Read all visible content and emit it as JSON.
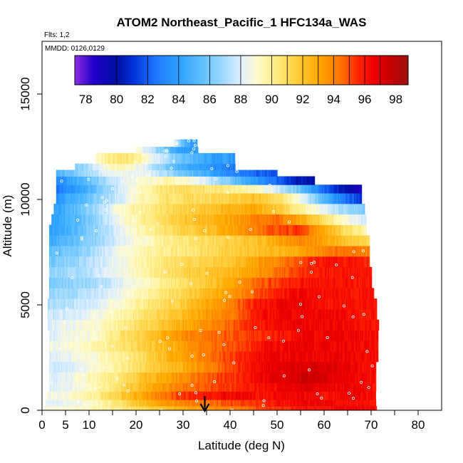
{
  "chart_data": {
    "type": "heatmap",
    "title": "ATOM2 Northeast_Pacific_1 HFC134a_WAS",
    "flights_label": "Flts: 1,2",
    "mmdd_label": "MMDD: 0126,0129",
    "xlabel": "Latitude (deg N)",
    "ylabel": "Altitude (m)",
    "xlim": [
      0,
      85
    ],
    "ylim": [
      0,
      17500
    ],
    "x_ticks": [
      0,
      5,
      10,
      20,
      30,
      40,
      50,
      60,
      70,
      80
    ],
    "x_ticks_unlabeled": [
      15,
      25,
      35,
      45,
      55,
      65,
      75
    ],
    "y_ticks": [
      0,
      5000,
      10000,
      15000
    ],
    "colorbar": {
      "min": 77.3,
      "max": 98.8,
      "ticks": [
        78,
        80,
        82,
        84,
        86,
        88,
        90,
        92,
        94,
        96,
        98
      ],
      "stops": [
        {
          "v": 77.3,
          "c": "#8a2be2"
        },
        {
          "v": 78.5,
          "c": "#2000c8"
        },
        {
          "v": 80.0,
          "c": "#0010a0"
        },
        {
          "v": 81.0,
          "c": "#0030d8"
        },
        {
          "v": 82.5,
          "c": "#1e78ff"
        },
        {
          "v": 84.0,
          "c": "#2ea0ff"
        },
        {
          "v": 85.5,
          "c": "#5ec0ff"
        },
        {
          "v": 87.0,
          "c": "#a8dcff"
        },
        {
          "v": 88.0,
          "c": "#dff0ff"
        },
        {
          "v": 89.0,
          "c": "#fffbd0"
        },
        {
          "v": 90.0,
          "c": "#fff090"
        },
        {
          "v": 91.5,
          "c": "#ffd040"
        },
        {
          "v": 93.0,
          "c": "#ffa800"
        },
        {
          "v": 94.5,
          "c": "#ff7000"
        },
        {
          "v": 95.5,
          "c": "#ff2800"
        },
        {
          "v": 96.5,
          "c": "#f00000"
        },
        {
          "v": 97.5,
          "c": "#cc0000"
        },
        {
          "v": 98.8,
          "c": "#9a1010"
        }
      ]
    },
    "marker": {
      "lat": 35,
      "label": "arrow"
    },
    "bands": [
      {
        "y0": 0,
        "y1": 200,
        "lat0": 0.5,
        "lat1": 71,
        "v": [
          89,
          89,
          89.5,
          90,
          91,
          92,
          93,
          93.5,
          94,
          95,
          95.5,
          96,
          96,
          96.5,
          96
        ]
      },
      {
        "y0": 200,
        "y1": 500,
        "lat0": 0.8,
        "lat1": 71,
        "v": [
          88,
          88.5,
          89,
          90.5,
          92,
          93.5,
          94,
          94.5,
          95,
          95.5,
          96,
          96.5,
          96.5,
          96,
          96
        ]
      },
      {
        "y0": 500,
        "y1": 900,
        "lat0": 1,
        "lat1": 71,
        "v": [
          88.5,
          89,
          90,
          91.5,
          93,
          94.5,
          95.5,
          96,
          96.5,
          96,
          96.5,
          96.5,
          96,
          96.5,
          96
        ]
      },
      {
        "y0": 900,
        "y1": 1300,
        "lat0": 1.5,
        "lat1": 71,
        "v": [
          88,
          88.5,
          89.5,
          91,
          92.5,
          93.5,
          94.5,
          95,
          95.5,
          96,
          96.5,
          97,
          96.5,
          96.5,
          96
        ]
      },
      {
        "y0": 1300,
        "y1": 1800,
        "lat0": 1.5,
        "lat1": 71,
        "v": [
          88,
          88.5,
          89.5,
          90.5,
          92,
          93,
          94,
          95,
          95.5,
          96.5,
          97,
          97.5,
          97,
          96.5,
          96
        ]
      },
      {
        "y0": 1800,
        "y1": 2300,
        "lat0": 1.5,
        "lat1": 71,
        "v": [
          87.5,
          88,
          89,
          90,
          91,
          92,
          93,
          94,
          95.5,
          96.5,
          97,
          97,
          97,
          96.5,
          96
        ]
      },
      {
        "y0": 2300,
        "y1": 2800,
        "lat0": 1.5,
        "lat1": 71.5,
        "v": [
          88,
          88.5,
          89,
          90,
          91,
          92.5,
          93.5,
          94.5,
          95.5,
          96.5,
          96.5,
          96.5,
          96.5,
          96.5,
          96
        ]
      },
      {
        "y0": 2800,
        "y1": 3300,
        "lat0": 1.5,
        "lat1": 71.5,
        "v": [
          88.5,
          89,
          89.5,
          90.5,
          91.5,
          92.5,
          93.5,
          94.5,
          95,
          96,
          96.5,
          96.5,
          96.5,
          96.5,
          96
        ]
      },
      {
        "y0": 3300,
        "y1": 3800,
        "lat0": 1.5,
        "lat1": 71.5,
        "v": [
          88,
          88.5,
          89,
          90.5,
          91.5,
          93,
          94,
          94.5,
          95,
          95.5,
          96,
          96.5,
          96.5,
          96.5,
          96
        ]
      },
      {
        "y0": 3800,
        "y1": 4300,
        "lat0": 1.2,
        "lat1": 71.5,
        "v": [
          88,
          88.5,
          89,
          90,
          91,
          92,
          93,
          94,
          95,
          96,
          96.5,
          96.5,
          96.5,
          96,
          96
        ]
      },
      {
        "y0": 4300,
        "y1": 4800,
        "lat0": 1.2,
        "lat1": 71,
        "v": [
          87.5,
          88,
          88.5,
          89.5,
          90.5,
          91.5,
          92.5,
          93.5,
          94.5,
          96,
          96.5,
          96.5,
          96.5,
          96,
          96
        ]
      },
      {
        "y0": 4800,
        "y1": 5300,
        "lat0": 1.2,
        "lat1": 71,
        "v": [
          87,
          87.5,
          88,
          89,
          90,
          91,
          92,
          93,
          94.5,
          96,
          96.5,
          96.5,
          96,
          96,
          96
        ]
      },
      {
        "y0": 5300,
        "y1": 5800,
        "lat0": 1.5,
        "lat1": 70.5,
        "v": [
          86.5,
          87,
          87.5,
          88.5,
          89.5,
          90.5,
          91.5,
          92.5,
          93.5,
          95,
          96,
          96.5,
          96,
          96,
          96
        ]
      },
      {
        "y0": 5800,
        "y1": 6300,
        "lat0": 1.5,
        "lat1": 70,
        "v": [
          86,
          86.5,
          87,
          88,
          89,
          90,
          91,
          92,
          93,
          94.5,
          95.5,
          96,
          96,
          96,
          96
        ]
      },
      {
        "y0": 6300,
        "y1": 6800,
        "lat0": 1.5,
        "lat1": 70,
        "v": [
          86.5,
          87,
          87.5,
          88.5,
          89.5,
          90.5,
          91.5,
          92,
          92.5,
          93.5,
          94.5,
          95.5,
          96,
          96,
          96
        ]
      },
      {
        "y0": 6800,
        "y1": 7300,
        "lat0": 1.5,
        "lat1": 69.5,
        "v": [
          86,
          86.5,
          87.5,
          88.5,
          89.5,
          90.5,
          91,
          91.5,
          92,
          93,
          94,
          95,
          96,
          96,
          95.5
        ]
      },
      {
        "y0": 7300,
        "y1": 7800,
        "lat0": 1.5,
        "lat1": 69.5,
        "v": [
          85.5,
          86,
          87,
          88.5,
          89.5,
          90,
          90.5,
          91,
          91.5,
          92,
          92.5,
          93,
          94,
          94.5,
          94
        ]
      },
      {
        "y0": 7800,
        "y1": 8300,
        "lat0": 1.5,
        "lat1": 69.5,
        "v": [
          84.5,
          85.5,
          86.5,
          88,
          89,
          90,
          90.5,
          91,
          91.5,
          92,
          93,
          94,
          93,
          92,
          91
        ]
      },
      {
        "y0": 8300,
        "y1": 8800,
        "lat0": 1.5,
        "lat1": 69,
        "v": [
          84,
          85,
          86.5,
          88,
          89.5,
          90.5,
          91.5,
          92,
          93,
          94,
          95,
          95.5,
          93,
          91,
          89.5
        ]
      },
      {
        "y0": 8800,
        "y1": 9300,
        "lat0": 2,
        "lat1": 69,
        "v": [
          84,
          85,
          86.5,
          88.5,
          90,
          91,
          92,
          92.5,
          93,
          94,
          94.5,
          93,
          91,
          89,
          87.5
        ]
      },
      {
        "y0": 9300,
        "y1": 9800,
        "lat0": 2.5,
        "lat1": 68.5,
        "v": [
          84,
          85.5,
          87,
          89,
          90,
          91,
          91.5,
          92,
          92.5,
          93,
          92,
          90,
          88.5,
          87,
          86
        ]
      },
      {
        "y0": 9800,
        "y1": 10300,
        "lat0": 3,
        "lat1": 68,
        "v": [
          83.5,
          85,
          86.5,
          88,
          89.5,
          90.5,
          91,
          91,
          91.5,
          92,
          91,
          89,
          86,
          83,
          81
        ]
      },
      {
        "y0": 10300,
        "y1": 10700,
        "lat0": 3,
        "lat1": 68,
        "v": [
          82.5,
          84,
          86,
          88,
          89.5,
          90.5,
          91,
          90.5,
          90,
          89.5,
          88,
          86,
          83,
          80.5,
          78.5
        ]
      },
      {
        "y0": 10700,
        "y1": 11100,
        "lat0": 3,
        "lat1": 58,
        "v": [
          83,
          84.5,
          86,
          87.5,
          88.5,
          89,
          89.5,
          89,
          88,
          86.5,
          85,
          83.5,
          82,
          80.5,
          80
        ]
      },
      {
        "y0": 11100,
        "y1": 11400,
        "lat0": 3,
        "lat1": 50,
        "v": [
          85,
          86,
          87,
          88,
          88.5,
          88.5,
          88,
          87,
          86,
          85,
          84,
          83,
          82.5,
          82,
          81.5
        ]
      },
      {
        "y0": 11400,
        "y1": 11700,
        "lat0": 7,
        "lat1": 41,
        "v": [
          86,
          87,
          88,
          89,
          89.5,
          89,
          88,
          87,
          86,
          85,
          84.5,
          84,
          83.5,
          83,
          82.5
        ]
      },
      {
        "y0": 11700,
        "y1": 12200,
        "lat0": 11.5,
        "lat1": 41,
        "v": [
          89,
          90,
          90.5,
          90.5,
          90,
          89,
          88,
          87,
          86,
          85.5,
          85,
          84.5,
          84,
          84,
          83.5
        ]
      },
      {
        "y0": 12200,
        "y1": 12500,
        "lat0": 20,
        "lat1": 33,
        "v": [
          89,
          88.5,
          88,
          87.5,
          87,
          86.5,
          86,
          85.5,
          85,
          84.5,
          84,
          84,
          84,
          84,
          84
        ]
      },
      {
        "y0": 12500,
        "y1": 12850,
        "lat0": 28,
        "lat1": 33,
        "v": [
          88,
          87.5,
          87,
          86.5,
          86,
          85.5,
          85,
          85,
          84.5,
          84.5,
          84,
          84,
          84,
          84,
          84
        ]
      }
    ]
  }
}
